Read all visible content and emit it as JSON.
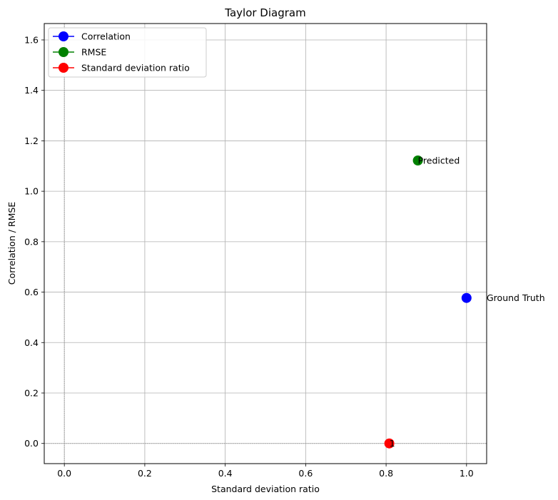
{
  "chart_data": {
    "type": "scatter",
    "title": "Taylor Diagram",
    "xlabel": "Standard deviation ratio",
    "ylabel": "Correlation / RMSE",
    "xlim": [
      -0.05,
      1.05
    ],
    "ylim": [
      -0.08,
      1.665
    ],
    "xticks": [
      "0.0",
      "0.2",
      "0.4",
      "0.6",
      "0.8",
      "1.0"
    ],
    "xtick_values": [
      0.0,
      0.2,
      0.4,
      0.6,
      0.8,
      1.0
    ],
    "yticks": [
      "0.0",
      "0.2",
      "0.4",
      "0.6",
      "0.8",
      "1.0",
      "1.2",
      "1.4",
      "1.6"
    ],
    "ytick_values": [
      0.0,
      0.2,
      0.4,
      0.6,
      0.8,
      1.0,
      1.2,
      1.4,
      1.6
    ],
    "grid": true,
    "legend_position": "top-left",
    "series": [
      {
        "name": "Correlation",
        "color": "#0000ff",
        "points": [
          {
            "x": 1.0,
            "y": 0.577
          }
        ]
      },
      {
        "name": "RMSE",
        "color": "#008000",
        "points": [
          {
            "x": 0.879,
            "y": 1.122
          }
        ]
      },
      {
        "name": "Standard deviation ratio",
        "color": "#ff0000",
        "points": [
          {
            "x": 0.808,
            "y": 0.0
          }
        ]
      }
    ],
    "annotations": [
      {
        "text": "Ground Truth",
        "x": 1.05,
        "y": 0.577
      },
      {
        "text": "Predicted",
        "x": 0.879,
        "y": 1.122
      },
      {
        "text": "1",
        "x": 0.808,
        "y": 0.0
      }
    ]
  }
}
